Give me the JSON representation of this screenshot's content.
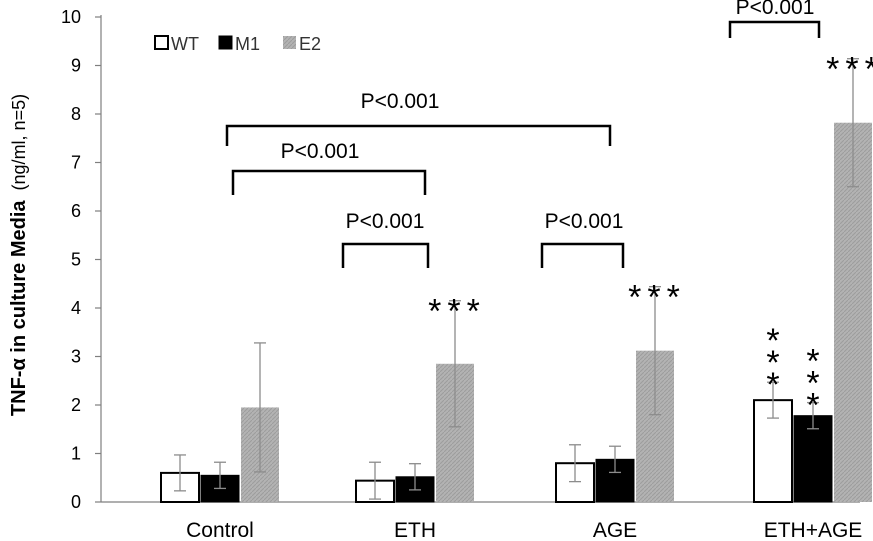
{
  "chart_data": {
    "type": "bar",
    "title": "",
    "xlabel": "",
    "ylabel": "TNF-α in culture Media",
    "ylabel_suffix": "(ng/ml, n=5)",
    "ylim": [
      0,
      10
    ],
    "yticks": [
      "0",
      "1",
      "2",
      "3",
      "4",
      "5",
      "6",
      "7",
      "8",
      "9",
      "10"
    ],
    "categories": [
      "Control",
      "ETH",
      "AGE",
      "ETH+AGE"
    ],
    "series": [
      {
        "name": "WT",
        "color": "#ffffff",
        "values": [
          0.6,
          0.44,
          0.8,
          2.1
        ],
        "errors": [
          0.37,
          0.38,
          0.38,
          0.37
        ]
      },
      {
        "name": "M1",
        "color": "#000000",
        "values": [
          0.55,
          0.52,
          0.88,
          1.78
        ],
        "errors": [
          0.27,
          0.27,
          0.27,
          0.27
        ]
      },
      {
        "name": "E2",
        "color": "#aaaaaa",
        "values": [
          1.95,
          2.85,
          3.12,
          7.82
        ],
        "errors": [
          1.33,
          1.3,
          1.32,
          1.32
        ]
      }
    ],
    "significance": [
      {
        "category": 1,
        "series": 2,
        "label": "***"
      },
      {
        "category": 2,
        "series": 2,
        "label": "***"
      },
      {
        "category": 3,
        "series": 0,
        "label": "***"
      },
      {
        "category": 3,
        "series": 1,
        "label": "***"
      },
      {
        "category": 3,
        "series": 2,
        "label": "***"
      }
    ],
    "comparisons": [
      {
        "from_category": 0,
        "to_category": 2,
        "label": "P<0.001"
      },
      {
        "from_category": 0,
        "to_category": 1,
        "label": "P<0.001"
      },
      {
        "from_category": 1,
        "within": true,
        "label": "P<0.001"
      },
      {
        "from_category": 2,
        "within": true,
        "label": "P<0.001"
      },
      {
        "from_category": 3,
        "within": true,
        "label": "P<0.001"
      }
    ],
    "legend_position": "top-left",
    "grid": false
  }
}
